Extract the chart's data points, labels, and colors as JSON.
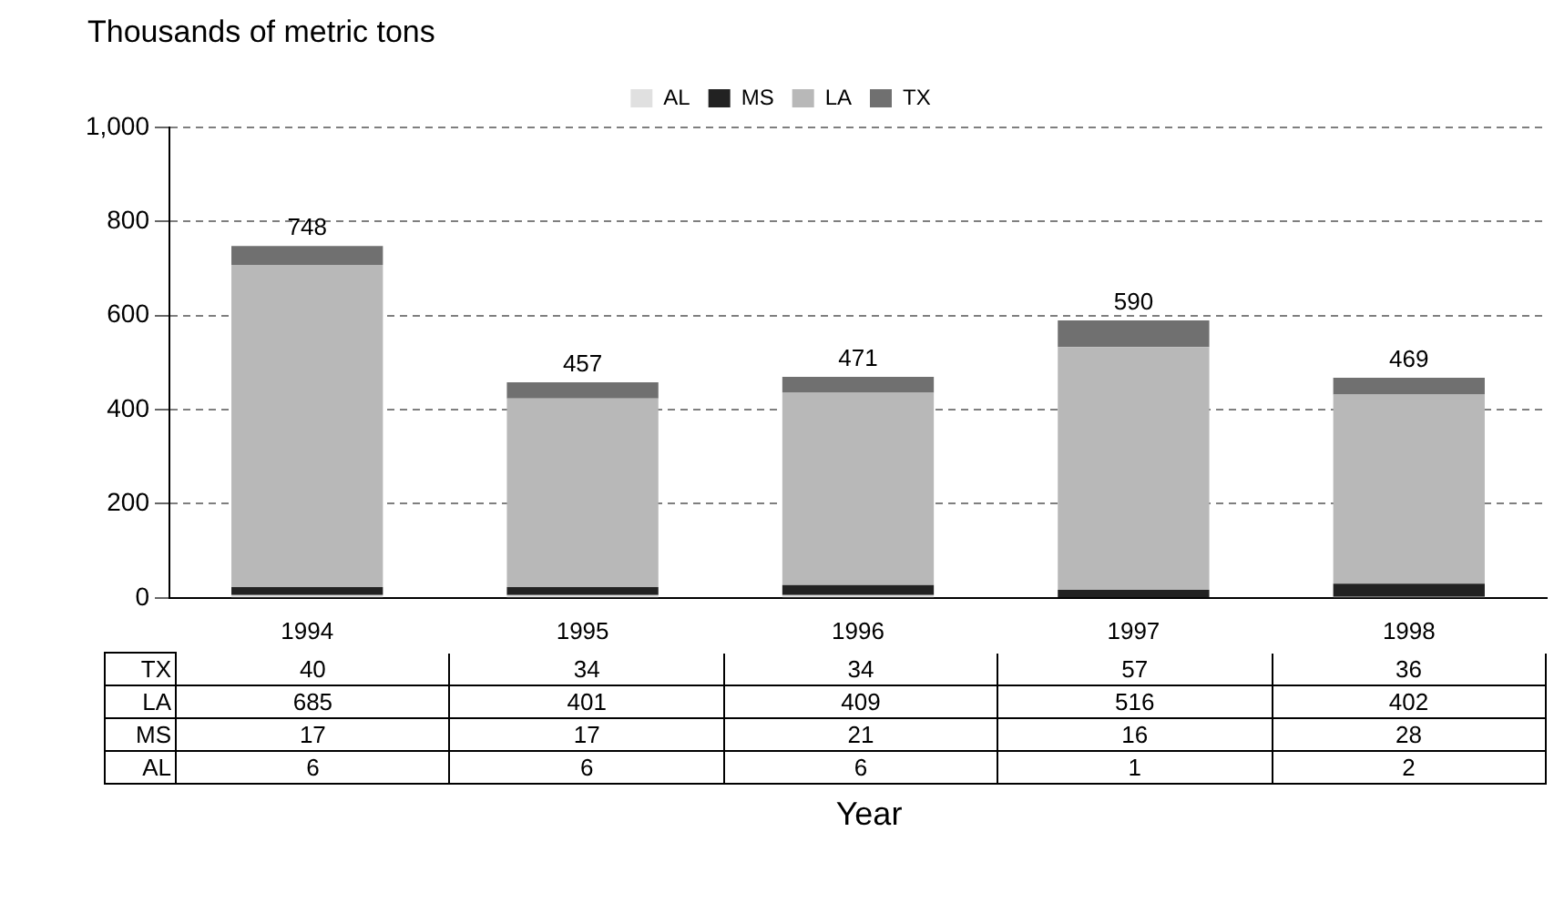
{
  "chart_data": {
    "type": "bar",
    "stacked": true,
    "ylabel": "Thousands of metric tons",
    "xlabel": "Year",
    "categories": [
      "1994",
      "1995",
      "1996",
      "1997",
      "1998"
    ],
    "series": [
      {
        "name": "AL",
        "color": "#e0e0e0",
        "values": [
          6,
          6,
          6,
          1,
          2
        ]
      },
      {
        "name": "MS",
        "color": "#222222",
        "values": [
          17,
          17,
          21,
          16,
          28
        ]
      },
      {
        "name": "LA",
        "color": "#b8b8b8",
        "values": [
          685,
          401,
          409,
          516,
          402
        ]
      },
      {
        "name": "TX",
        "color": "#707070",
        "values": [
          40,
          34,
          34,
          57,
          36
        ]
      }
    ],
    "totals": [
      "748",
      "457",
      "471",
      "590",
      "469"
    ],
    "data_labels": true,
    "ylim": [
      0,
      1000
    ],
    "yticks": [
      0,
      200,
      400,
      600,
      800,
      {
        "value": 1000,
        "label": "1,000"
      }
    ],
    "grid": "y",
    "legend": "top"
  }
}
